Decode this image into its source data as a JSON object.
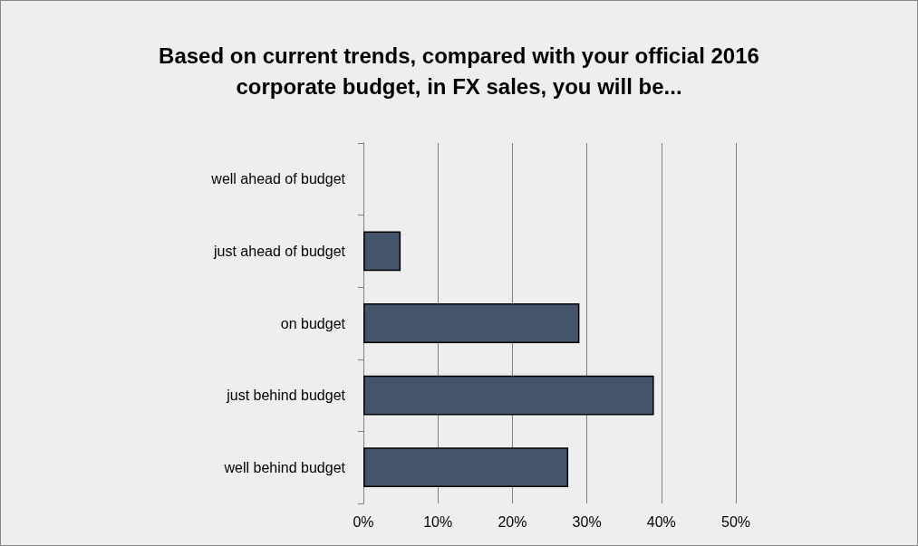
{
  "chart_data": {
    "type": "bar",
    "orientation": "horizontal",
    "title": "Based on current trends, compared with your official 2016\ncorporate budget, in FX sales, you will be...",
    "categories": [
      "well ahead of budget",
      "just ahead of budget",
      "on budget",
      "just behind budget",
      "well behind budget"
    ],
    "values": [
      0,
      5,
      29,
      39,
      27.5
    ],
    "color": "#44546a",
    "xlim": [
      0,
      50
    ],
    "xticks": [
      {
        "value": 0,
        "label": "0%"
      },
      {
        "value": 10,
        "label": "10%"
      },
      {
        "value": 20,
        "label": "20%"
      },
      {
        "value": 30,
        "label": "30%"
      },
      {
        "value": 40,
        "label": "40%"
      },
      {
        "value": 50,
        "label": "50%"
      }
    ],
    "grid": "x"
  }
}
